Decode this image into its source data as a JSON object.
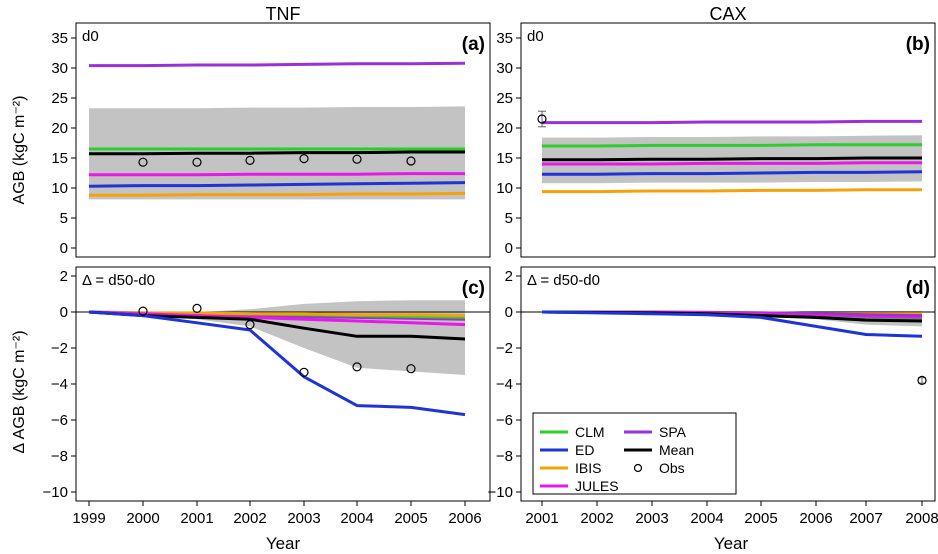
{
  "column_titles": {
    "left": "TNF",
    "right": "CAX"
  },
  "ylabel_top": "AGB (kgC m⁻²)",
  "ylabel_bottom": "Δ AGB (kgC m⁻²)",
  "xlabel": "Year",
  "legend": {
    "entries": [
      {
        "name": "CLM",
        "color": "#2ecc2e",
        "style": "line"
      },
      {
        "name": "SPA",
        "color": "#9b30d9",
        "style": "line"
      },
      {
        "name": "ED",
        "color": "#1f33d6",
        "style": "line"
      },
      {
        "name": "Mean",
        "color": "#000000",
        "style": "line"
      },
      {
        "name": "IBIS",
        "color": "#f5a20a",
        "style": "line"
      },
      {
        "name": "Obs",
        "color": "#000000",
        "style": "circle"
      },
      {
        "name": "JULES",
        "color": "#e619e6",
        "style": "line"
      }
    ]
  },
  "chart_data": [
    {
      "type": "line",
      "panel_label": "(a)",
      "annotation": "d0",
      "x": [
        1999,
        2000,
        2001,
        2002,
        2003,
        2004,
        2005,
        2006
      ],
      "xticks": [
        "1999",
        "2000",
        "2001",
        "2002",
        "2003",
        "2004",
        "2005",
        "2006"
      ],
      "xlim": [
        1999,
        2006
      ],
      "ylim": [
        -1.5,
        37.5
      ],
      "yticks": [
        "0",
        "5",
        "10",
        "15",
        "20",
        "25",
        "30",
        "35"
      ],
      "zero_line": false,
      "band": {
        "lower": [
          8.1,
          8.1,
          8.1,
          8.1,
          8.1,
          8.1,
          8.1,
          8.1
        ],
        "upper": [
          23.3,
          23.3,
          23.3,
          23.4,
          23.4,
          23.5,
          23.5,
          23.6
        ]
      },
      "series": [
        {
          "name": "SPA",
          "values": [
            30.4,
            30.4,
            30.5,
            30.5,
            30.6,
            30.7,
            30.7,
            30.8
          ]
        },
        {
          "name": "CLM",
          "values": [
            16.5,
            16.5,
            16.5,
            16.5,
            16.5,
            16.5,
            16.5,
            16.5
          ]
        },
        {
          "name": "Mean",
          "values": [
            15.7,
            15.7,
            15.8,
            15.8,
            15.9,
            15.9,
            16.0,
            16.0
          ]
        },
        {
          "name": "JULES",
          "values": [
            12.2,
            12.2,
            12.2,
            12.3,
            12.3,
            12.3,
            12.4,
            12.4
          ]
        },
        {
          "name": "ED",
          "values": [
            10.3,
            10.4,
            10.4,
            10.5,
            10.6,
            10.7,
            10.8,
            10.9
          ]
        },
        {
          "name": "IBIS",
          "values": [
            8.8,
            8.8,
            8.9,
            8.9,
            8.9,
            9.0,
            9.0,
            9.1
          ]
        }
      ],
      "obs": {
        "x": [
          2000,
          2001,
          2002,
          2003,
          2004,
          2005
        ],
        "y": [
          14.3,
          14.3,
          14.6,
          14.9,
          14.8,
          14.5
        ]
      }
    },
    {
      "type": "line",
      "panel_label": "(b)",
      "annotation": "d0",
      "x": [
        2001,
        2002,
        2003,
        2004,
        2005,
        2006,
        2007,
        2008
      ],
      "xticks": [
        "2001",
        "2002",
        "2003",
        "2004",
        "2005",
        "2006",
        "2007",
        "2008"
      ],
      "xlim": [
        2001,
        2008
      ],
      "ylim": [
        -1.5,
        37.5
      ],
      "yticks": [
        "0",
        "5",
        "10",
        "15",
        "20",
        "25",
        "30",
        "35"
      ],
      "zero_line": false,
      "band": {
        "lower": [
          10.8,
          10.8,
          10.9,
          10.9,
          10.9,
          11.0,
          11.0,
          11.1
        ],
        "upper": [
          18.4,
          18.4,
          18.5,
          18.5,
          18.6,
          18.6,
          18.7,
          18.8
        ]
      },
      "series": [
        {
          "name": "SPA",
          "values": [
            20.9,
            20.9,
            20.9,
            21.0,
            21.0,
            21.0,
            21.1,
            21.1
          ]
        },
        {
          "name": "CLM",
          "values": [
            17.0,
            17.0,
            17.1,
            17.1,
            17.1,
            17.2,
            17.2,
            17.2
          ]
        },
        {
          "name": "Mean",
          "values": [
            14.7,
            14.7,
            14.8,
            14.8,
            14.9,
            14.9,
            15.0,
            15.0
          ]
        },
        {
          "name": "JULES",
          "values": [
            14.0,
            14.0,
            14.0,
            14.1,
            14.1,
            14.1,
            14.2,
            14.2
          ]
        },
        {
          "name": "ED",
          "values": [
            12.3,
            12.3,
            12.4,
            12.4,
            12.5,
            12.6,
            12.6,
            12.7
          ]
        },
        {
          "name": "IBIS",
          "values": [
            9.4,
            9.4,
            9.5,
            9.5,
            9.6,
            9.6,
            9.7,
            9.7
          ]
        }
      ],
      "obs": {
        "x": [
          2001
        ],
        "y": [
          21.5
        ],
        "err": [
          1.3
        ]
      }
    },
    {
      "type": "line",
      "panel_label": "(c)",
      "annotation": "Δ = d50-d0",
      "x": [
        1999,
        2000,
        2001,
        2002,
        2003,
        2004,
        2005,
        2006
      ],
      "xticks": [
        "1999",
        "2000",
        "2001",
        "2002",
        "2003",
        "2004",
        "2005",
        "2006"
      ],
      "xlim": [
        1999,
        2006
      ],
      "ylim": [
        -10.5,
        2.5
      ],
      "yticks": [
        "−10",
        "−8",
        "−6",
        "−4",
        "−2",
        "0",
        "2"
      ],
      "zero_line": true,
      "band": {
        "lower": [
          0.0,
          -0.2,
          -0.4,
          -0.8,
          -2.0,
          -3.1,
          -3.3,
          -3.5
        ],
        "upper": [
          0.0,
          0.0,
          0.0,
          0.15,
          0.45,
          0.6,
          0.65,
          0.65
        ]
      },
      "series": [
        {
          "name": "SPA",
          "values": [
            0.0,
            -0.1,
            -0.15,
            -0.2,
            -0.25,
            -0.3,
            -0.35,
            -0.4
          ]
        },
        {
          "name": "CLM",
          "values": [
            0.0,
            -0.05,
            -0.1,
            -0.1,
            -0.15,
            -0.2,
            -0.25,
            -0.3
          ]
        },
        {
          "name": "IBIS",
          "values": [
            0.0,
            -0.05,
            -0.05,
            -0.1,
            -0.1,
            -0.15,
            -0.15,
            -0.2
          ]
        },
        {
          "name": "JULES",
          "values": [
            0.0,
            -0.1,
            -0.2,
            -0.3,
            -0.4,
            -0.5,
            -0.6,
            -0.7
          ]
        },
        {
          "name": "Mean",
          "values": [
            0.0,
            -0.2,
            -0.3,
            -0.4,
            -0.9,
            -1.35,
            -1.35,
            -1.5
          ]
        },
        {
          "name": "ED",
          "values": [
            0.0,
            -0.2,
            -0.6,
            -1.0,
            -3.6,
            -5.2,
            -5.3,
            -5.7
          ]
        }
      ],
      "obs": {
        "x": [
          2000,
          2001,
          2002,
          2003,
          2004,
          2005
        ],
        "y": [
          0.05,
          0.2,
          -0.7,
          -3.35,
          -3.05,
          -3.15
        ]
      }
    },
    {
      "type": "line",
      "panel_label": "(d)",
      "annotation": "Δ = d50-d0",
      "x": [
        2001,
        2002,
        2003,
        2004,
        2005,
        2006,
        2007,
        2008
      ],
      "xticks": [
        "2001",
        "2002",
        "2003",
        "2004",
        "2005",
        "2006",
        "2007",
        "2008"
      ],
      "xlim": [
        2001,
        2008
      ],
      "ylim": [
        -10.5,
        2.5
      ],
      "yticks": [
        "−10",
        "−8",
        "−6",
        "−4",
        "−2",
        "0",
        "2"
      ],
      "zero_line": true,
      "band": {
        "lower": [
          0.0,
          0.0,
          -0.05,
          -0.1,
          -0.2,
          -0.4,
          -0.7,
          -0.8
        ],
        "upper": [
          0.0,
          0.0,
          0.0,
          0.0,
          0.0,
          0.05,
          0.05,
          0.05
        ]
      },
      "series": [
        {
          "name": "IBIS",
          "values": [
            0.0,
            0.0,
            0.0,
            -0.02,
            -0.05,
            -0.1,
            -0.1,
            -0.1
          ]
        },
        {
          "name": "SPA",
          "values": [
            0.0,
            0.0,
            0.0,
            -0.02,
            -0.05,
            -0.1,
            -0.15,
            -0.2
          ]
        },
        {
          "name": "JULES",
          "values": [
            0.0,
            0.0,
            -0.02,
            -0.05,
            -0.1,
            -0.2,
            -0.3,
            -0.35
          ]
        },
        {
          "name": "CLM",
          "values": [
            0.0,
            -0.02,
            -0.05,
            -0.1,
            -0.2,
            -0.3,
            -0.4,
            -0.45
          ]
        },
        {
          "name": "Mean",
          "values": [
            0.0,
            -0.02,
            -0.05,
            -0.1,
            -0.2,
            -0.3,
            -0.45,
            -0.5
          ]
        },
        {
          "name": "ED",
          "values": [
            0.0,
            -0.05,
            -0.1,
            -0.15,
            -0.3,
            -0.8,
            -1.25,
            -1.35
          ]
        }
      ],
      "obs": {
        "x": [
          2008
        ],
        "y": [
          -3.8
        ],
        "err": [
          0.15
        ]
      }
    }
  ]
}
